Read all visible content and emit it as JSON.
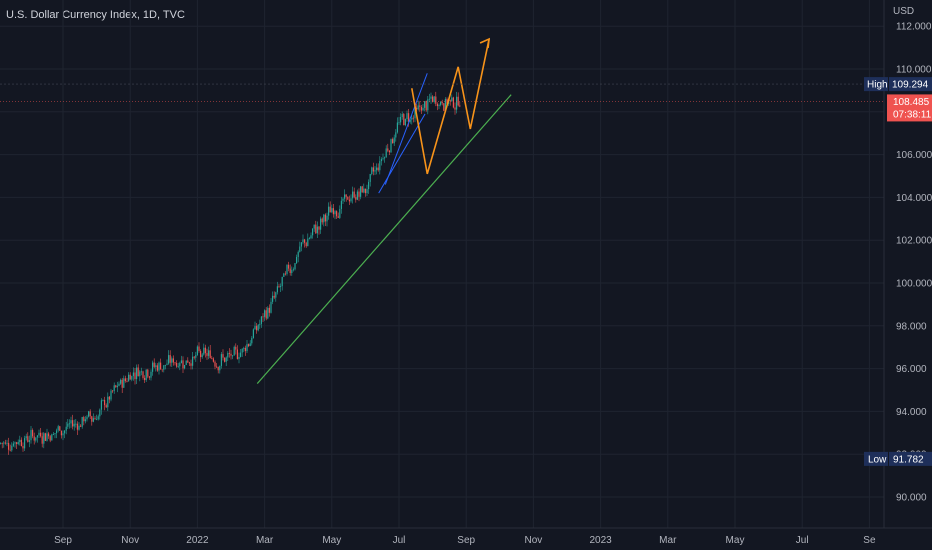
{
  "title": "U.S. Dollar Currency Index, 1D, TVC",
  "chart_data": {
    "type": "candlestick",
    "currency": "USD",
    "y_ticks": [
      90,
      92,
      94,
      96,
      98,
      100,
      102,
      104,
      106,
      108,
      110,
      112
    ],
    "y_tick_labels": [
      "90.000",
      "92.000",
      "94.000",
      "96.000",
      "98.000",
      "100.000",
      "102.000",
      "104.000",
      "106.000",
      "108.000",
      "110.000",
      "112.000"
    ],
    "x_tick_labels": [
      "Sep",
      "Nov",
      "2022",
      "Mar",
      "May",
      "Jul",
      "Sep",
      "Nov",
      "2023",
      "Mar",
      "May",
      "Jul",
      "Se"
    ],
    "ylim": [
      89.2,
      112.8
    ],
    "high_tag": {
      "label": "High",
      "value": "109.294"
    },
    "low_tag": {
      "label": "Low",
      "value": "91.782"
    },
    "last_price": {
      "value": "108.485",
      "countdown": "07:38:11"
    },
    "colors": {
      "up": "#26a69a",
      "down": "#ef5350",
      "trend": "#4caf50",
      "projection": "#f7931a",
      "channel": "#2962ff",
      "last": "#ef5350",
      "tag": "#1e2f5a"
    },
    "monthly_path": [
      [
        "2021-08",
        92.8
      ],
      [
        "2021-09",
        93.2
      ],
      [
        "2021-10",
        93.9
      ],
      [
        "2021-11",
        95.9
      ],
      [
        "2021-12",
        96.2
      ],
      [
        "2022-01",
        96.6
      ],
      [
        "2022-02",
        96.4
      ],
      [
        "2022-03",
        98.4
      ],
      [
        "2022-04",
        101.5
      ],
      [
        "2022-05",
        103.4
      ],
      [
        "2022-06",
        104.4
      ],
      [
        "2022-07",
        107.5
      ],
      [
        "2022-08",
        108.5
      ]
    ],
    "trendline": [
      [
        "2022-02-24",
        95.3
      ],
      [
        "2022-10-12",
        108.8
      ]
    ],
    "projection": [
      [
        "2022-07-14",
        109.1
      ],
      [
        "2022-07-28",
        105.1
      ],
      [
        "2022-08-25",
        110.1
      ],
      [
        "2022-09-05",
        107.2
      ],
      [
        "2022-09-22",
        111.4
      ]
    ]
  }
}
